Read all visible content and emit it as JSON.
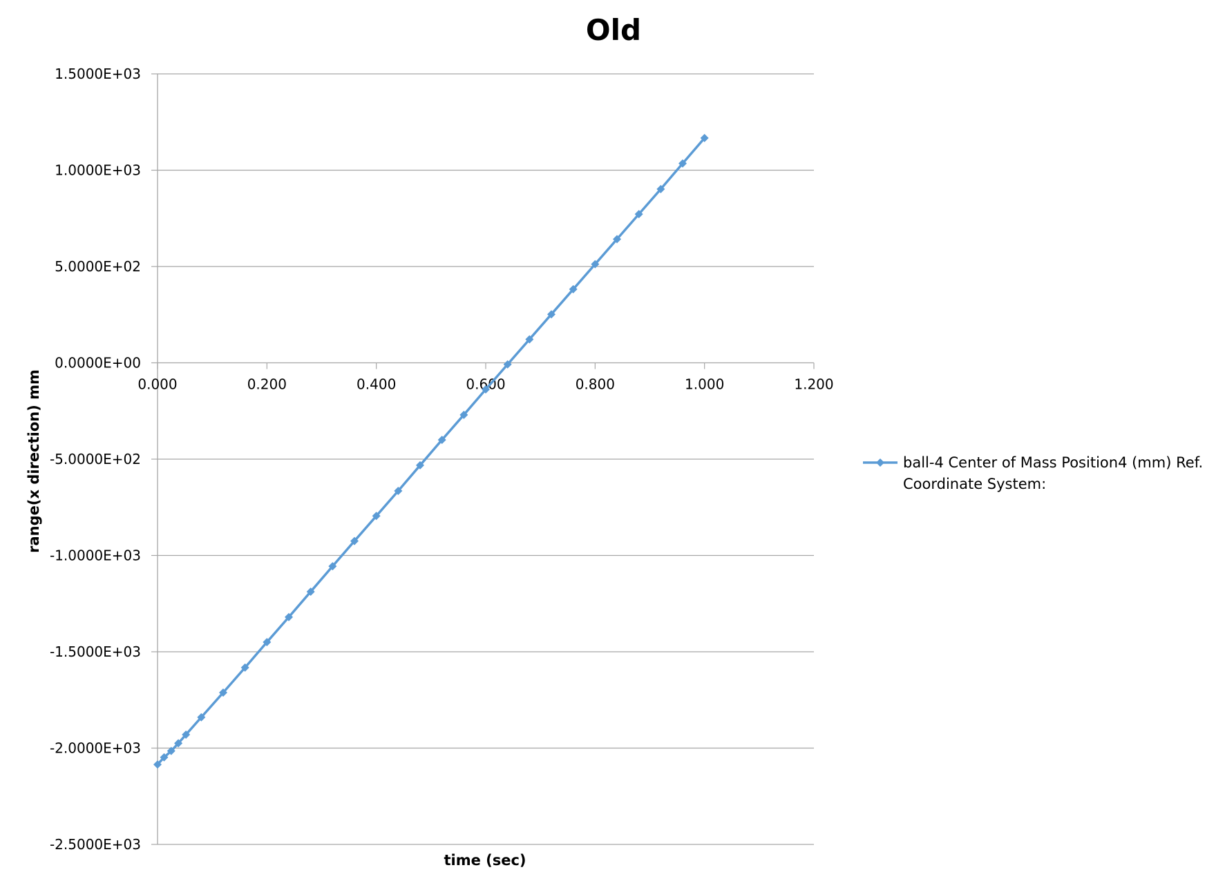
{
  "chart_data": {
    "type": "line",
    "title": "Old",
    "xlabel": "time (sec)",
    "ylabel": "range(x direction) mm",
    "xlim": [
      0,
      1.2
    ],
    "ylim": [
      -2500,
      1500
    ],
    "x_ticks": [
      "0.000",
      "0.200",
      "0.400",
      "0.600",
      "0.800",
      "1.000",
      "1.200"
    ],
    "y_ticks": [
      "1.5000E+03",
      "1.0000E+03",
      "5.0000E+02",
      "0.0000E+00",
      "-5.0000E+02",
      "-1.0000E+03",
      "-1.5000E+03",
      "-2.0000E+03",
      "-2.5000E+03"
    ],
    "grid": true,
    "legend_position": "right",
    "series": [
      {
        "name": "ball-4 Center of Mass Position4 (mm) Ref. Coordinate System:",
        "color": "#5B9BD5",
        "marker": "diamond",
        "x": [
          0.0,
          0.012,
          0.025,
          0.038,
          0.052,
          0.08,
          0.12,
          0.16,
          0.2,
          0.24,
          0.28,
          0.32,
          0.36,
          0.4,
          0.44,
          0.48,
          0.52,
          0.56,
          0.6,
          0.64,
          0.68,
          0.72,
          0.76,
          0.8,
          0.84,
          0.88,
          0.92,
          0.96,
          1.0
        ],
        "y": [
          -2085,
          -2048,
          -2015,
          -1975,
          -1930,
          -1840,
          -1712,
          -1582,
          -1450,
          -1320,
          -1188,
          -1056,
          -925,
          -795,
          -665,
          -532,
          -400,
          -270,
          -138,
          -8,
          122,
          252,
          382,
          512,
          642,
          772,
          902,
          1035,
          1167
        ]
      }
    ]
  }
}
